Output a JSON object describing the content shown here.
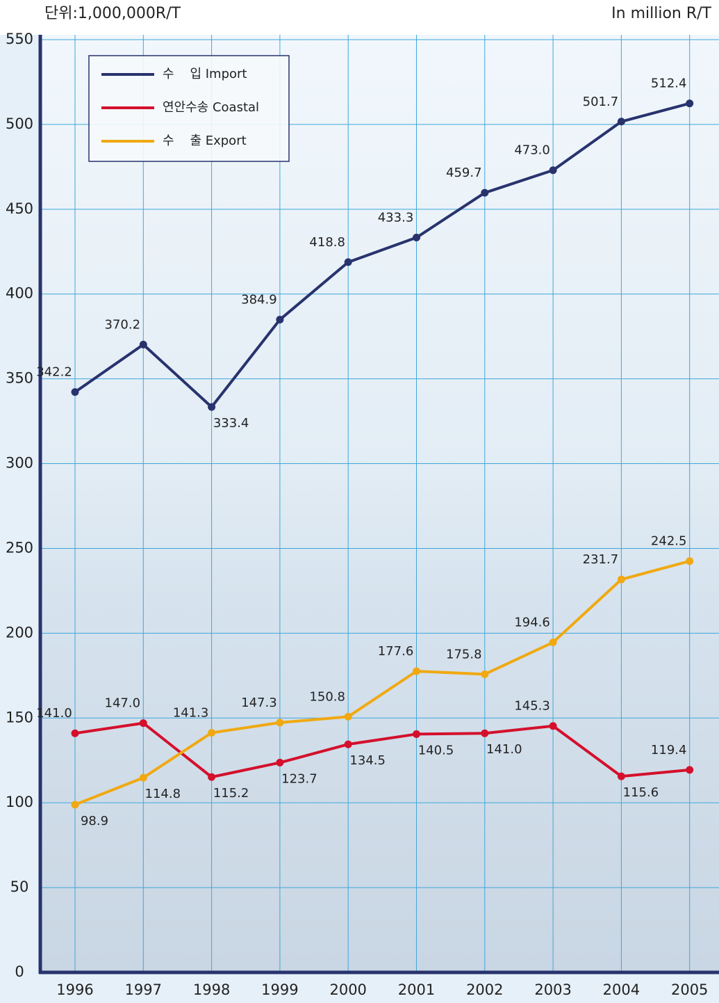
{
  "chart_data": {
    "type": "line",
    "unit_label": "단위:1,000,000R/T",
    "unit_label_en": "In million R/T",
    "categories": [
      "1996",
      "1997",
      "1998",
      "1999",
      "2000",
      "2001",
      "2002",
      "2003",
      "2004",
      "2005"
    ],
    "series": [
      {
        "name": "수    입 Import",
        "color": "#28336e",
        "values": [
          342.2,
          370.2,
          333.4,
          384.9,
          418.8,
          433.3,
          459.7,
          473.0,
          501.7,
          512.4
        ],
        "value_labels": [
          "342.2",
          "370.2",
          "333.4",
          "384.9",
          "418.8",
          "433.3",
          "459.7",
          "473.0",
          "501.7",
          "512.4"
        ]
      },
      {
        "name": "연안수송 Coastal",
        "color": "#d4102c",
        "values": [
          141.0,
          147.0,
          115.2,
          123.7,
          134.5,
          140.5,
          141.0,
          145.3,
          115.6,
          119.4
        ],
        "value_labels": [
          "141.0",
          "147.0",
          "115.2",
          "123.7",
          "134.5",
          "140.5",
          "141.0",
          "145.3",
          "115.6",
          "119.4"
        ]
      },
      {
        "name": "수    출 Export",
        "color": "#f0a912",
        "values": [
          98.9,
          114.8,
          141.3,
          147.3,
          150.8,
          177.6,
          175.8,
          194.6,
          231.7,
          242.5
        ],
        "value_labels": [
          "98.9",
          "114.8",
          "141.3",
          "147.3",
          "150.8",
          "177.6",
          "175.8",
          "194.6",
          "231.7",
          "242.5"
        ]
      }
    ],
    "ylim": [
      0,
      550
    ],
    "yticks": [
      0,
      50,
      100,
      150,
      200,
      250,
      300,
      350,
      400,
      450,
      500,
      550
    ],
    "grid": true,
    "legend": "top-left"
  }
}
